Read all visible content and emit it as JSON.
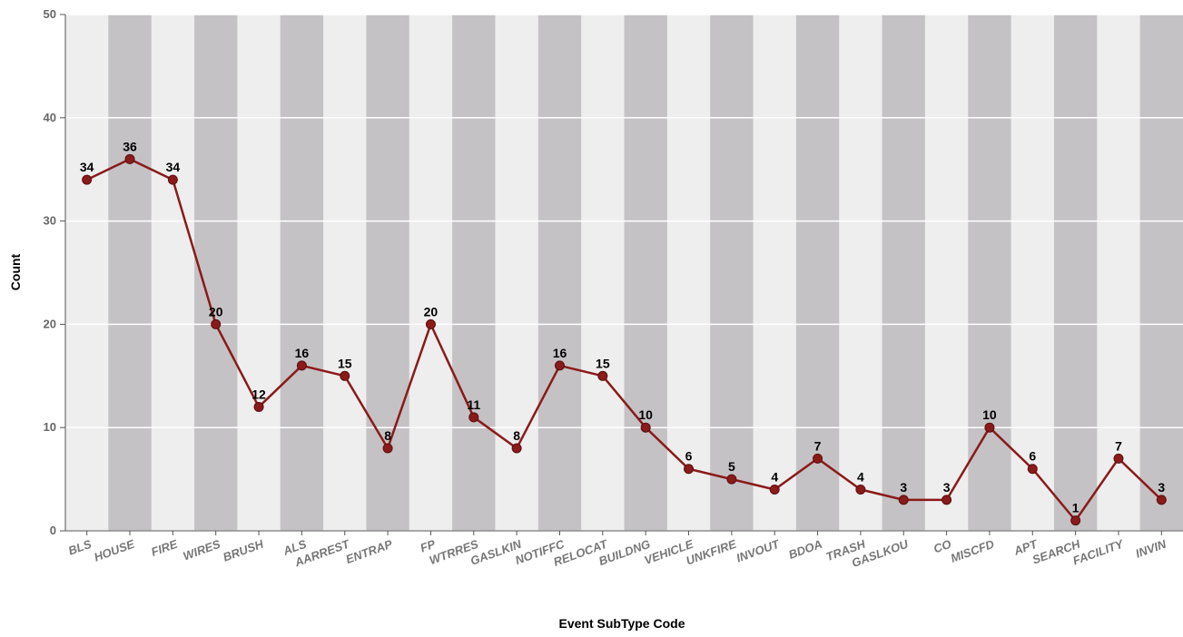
{
  "chart_data": {
    "type": "line",
    "title": "",
    "xlabel": "Event SubType Code",
    "ylabel": "Count",
    "ylim": [
      0,
      50
    ],
    "yticks": [
      0,
      10,
      20,
      30,
      40,
      50
    ],
    "grid": true,
    "legend": "none",
    "categories": [
      "BLS",
      "HOUSE",
      "FIRE",
      "WIRES",
      "BRUSH",
      "ALS",
      "AARREST",
      "ENTRAP",
      "FP",
      "WTRRES",
      "GASLKIN",
      "NOTIFFC",
      "RELOCAT",
      "BUILDNG",
      "VEHICLE",
      "UNKFIRE",
      "INVOUT",
      "BDOA",
      "TRASH",
      "GASLKOU",
      "CO",
      "MISCFD",
      "APT",
      "SEARCH",
      "FACILITY",
      "INVIN"
    ],
    "series": [
      {
        "values": [
          34,
          36,
          34,
          20,
          12,
          16,
          15,
          8,
          20,
          11,
          8,
          16,
          15,
          10,
          6,
          5,
          4,
          7,
          4,
          3,
          3,
          10,
          6,
          1,
          7,
          3
        ]
      }
    ],
    "colors": {
      "line": "#8b1a1a",
      "marker": "#8b1a1a",
      "band_light": "#eeeeee",
      "band_dark": "#c4c2c5",
      "gridline": "#ffffff"
    }
  }
}
